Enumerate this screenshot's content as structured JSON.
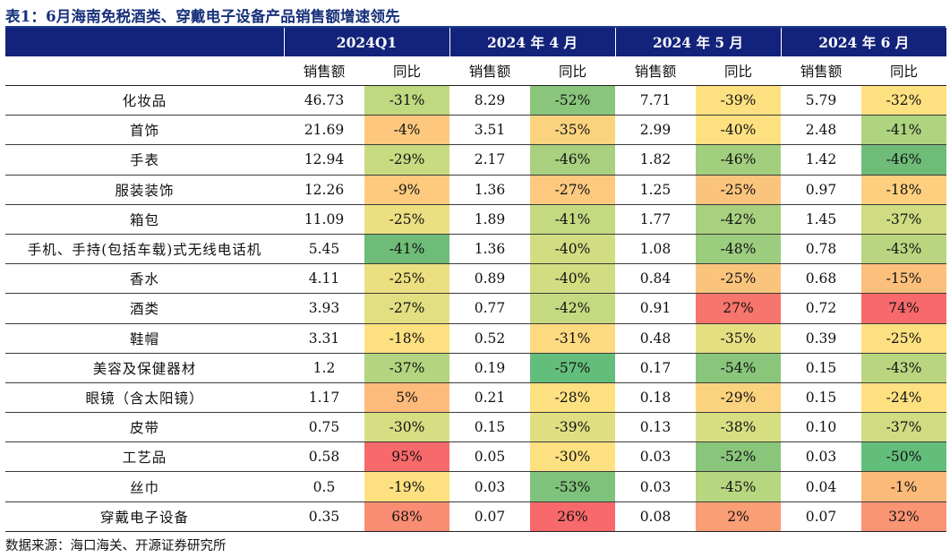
{
  "title": "表1：6月海南免税酒类、穿戴电子设备产品销售额增速领先",
  "periods": [
    "2024Q1",
    "2024 年 4 月",
    "2024 年 5 月",
    "2024 年 6 月"
  ],
  "subheaders": [
    "销售额",
    "同比"
  ],
  "rows": [
    {
      "name": "化妆品",
      "cells": [
        [
          "46.73",
          "-31%"
        ],
        [
          "8.29",
          "-52%"
        ],
        [
          "7.71",
          "-39%"
        ],
        [
          "5.79",
          "-32%"
        ]
      ]
    },
    {
      "name": "首饰",
      "cells": [
        [
          "21.69",
          "-4%"
        ],
        [
          "3.51",
          "-35%"
        ],
        [
          "2.99",
          "-40%"
        ],
        [
          "2.48",
          "-41%"
        ]
      ]
    },
    {
      "name": "手表",
      "cells": [
        [
          "12.94",
          "-29%"
        ],
        [
          "2.17",
          "-46%"
        ],
        [
          "1.82",
          "-46%"
        ],
        [
          "1.42",
          "-46%"
        ]
      ]
    },
    {
      "name": "服装装饰",
      "cells": [
        [
          "12.26",
          "-9%"
        ],
        [
          "1.36",
          "-27%"
        ],
        [
          "1.25",
          "-25%"
        ],
        [
          "0.97",
          "-18%"
        ]
      ]
    },
    {
      "name": "箱包",
      "cells": [
        [
          "11.09",
          "-25%"
        ],
        [
          "1.89",
          "-41%"
        ],
        [
          "1.77",
          "-42%"
        ],
        [
          "1.45",
          "-37%"
        ]
      ]
    },
    {
      "name": "手机、手持(包括车载)式无线电话机",
      "cells": [
        [
          "5.45",
          "-41%"
        ],
        [
          "1.36",
          "-40%"
        ],
        [
          "1.08",
          "-48%"
        ],
        [
          "0.78",
          "-43%"
        ]
      ]
    },
    {
      "name": "香水",
      "cells": [
        [
          "4.11",
          "-25%"
        ],
        [
          "0.89",
          "-40%"
        ],
        [
          "0.84",
          "-25%"
        ],
        [
          "0.68",
          "-15%"
        ]
      ]
    },
    {
      "name": "酒类",
      "cells": [
        [
          "3.93",
          "-27%"
        ],
        [
          "0.77",
          "-42%"
        ],
        [
          "0.91",
          "27%"
        ],
        [
          "0.72",
          "74%"
        ]
      ]
    },
    {
      "name": "鞋帽",
      "cells": [
        [
          "3.31",
          "-18%"
        ],
        [
          "0.52",
          "-31%"
        ],
        [
          "0.48",
          "-35%"
        ],
        [
          "0.39",
          "-25%"
        ]
      ]
    },
    {
      "name": "美容及保健器材",
      "cells": [
        [
          "1.2",
          "-37%"
        ],
        [
          "0.19",
          "-57%"
        ],
        [
          "0.17",
          "-54%"
        ],
        [
          "0.15",
          "-43%"
        ]
      ]
    },
    {
      "name": "眼镜（含太阳镜）",
      "cells": [
        [
          "1.17",
          "5%"
        ],
        [
          "0.21",
          "-28%"
        ],
        [
          "0.18",
          "-29%"
        ],
        [
          "0.15",
          "-24%"
        ]
      ]
    },
    {
      "name": "皮带",
      "cells": [
        [
          "0.75",
          "-30%"
        ],
        [
          "0.15",
          "-39%"
        ],
        [
          "0.13",
          "-38%"
        ],
        [
          "0.10",
          "-37%"
        ]
      ]
    },
    {
      "name": "工艺品",
      "cells": [
        [
          "0.58",
          "95%"
        ],
        [
          "0.05",
          "-30%"
        ],
        [
          "0.03",
          "-52%"
        ],
        [
          "0.03",
          "-50%"
        ]
      ]
    },
    {
      "name": "丝巾",
      "cells": [
        [
          "0.5",
          "-19%"
        ],
        [
          "0.03",
          "-53%"
        ],
        [
          "0.03",
          "-45%"
        ],
        [
          "0.04",
          "-1%"
        ]
      ]
    },
    {
      "name": "穿戴电子设备",
      "cells": [
        [
          "0.35",
          "68%"
        ],
        [
          "0.07",
          "26%"
        ],
        [
          "0.08",
          "2%"
        ],
        [
          "0.07",
          "32%"
        ]
      ]
    }
  ],
  "yoy_colors": [
    [
      "#c0d880",
      "#8ac57c",
      "#fde080",
      "#fde080"
    ],
    [
      "#fdc87e",
      "#fbd37f",
      "#fde080",
      "#aed47f"
    ],
    [
      "#c9db81",
      "#a8d07f",
      "#a2cf7e",
      "#6ebc78"
    ],
    [
      "#fdca7e",
      "#fdc97f",
      "#fbc47d",
      "#fdcf7e"
    ],
    [
      "#ecdf81",
      "#c5d981",
      "#a8d07f",
      "#cfdc81"
    ],
    [
      "#6ebc78",
      "#d2dd81",
      "#9ccc7e",
      "#b9d57f"
    ],
    [
      "#ecdf81",
      "#d2dd81",
      "#fbc47d",
      "#fcc07c"
    ],
    [
      "#e2df82",
      "#c5d981",
      "#f6756c",
      "#f8696b"
    ],
    [
      "#fde080",
      "#fdda80",
      "#e6df82",
      "#fde080"
    ],
    [
      "#b4d57f",
      "#63be7b",
      "#8ac57c",
      "#b9d57f"
    ],
    [
      "#fdbb7b",
      "#fde080",
      "#fbd37f",
      "#fde080"
    ],
    [
      "#d7dd82",
      "#dfdf82",
      "#d6de82",
      "#d0dc81"
    ],
    [
      "#f8696b",
      "#fde080",
      "#8ac57c",
      "#63be7b"
    ],
    [
      "#fde080",
      "#7fc27b",
      "#b7d680",
      "#fbba7a"
    ],
    [
      "#f98d73",
      "#f8696b",
      "#fa9e76",
      "#fa9574"
    ]
  ],
  "source": "数据来源：海口海关、开源证券研究所"
}
